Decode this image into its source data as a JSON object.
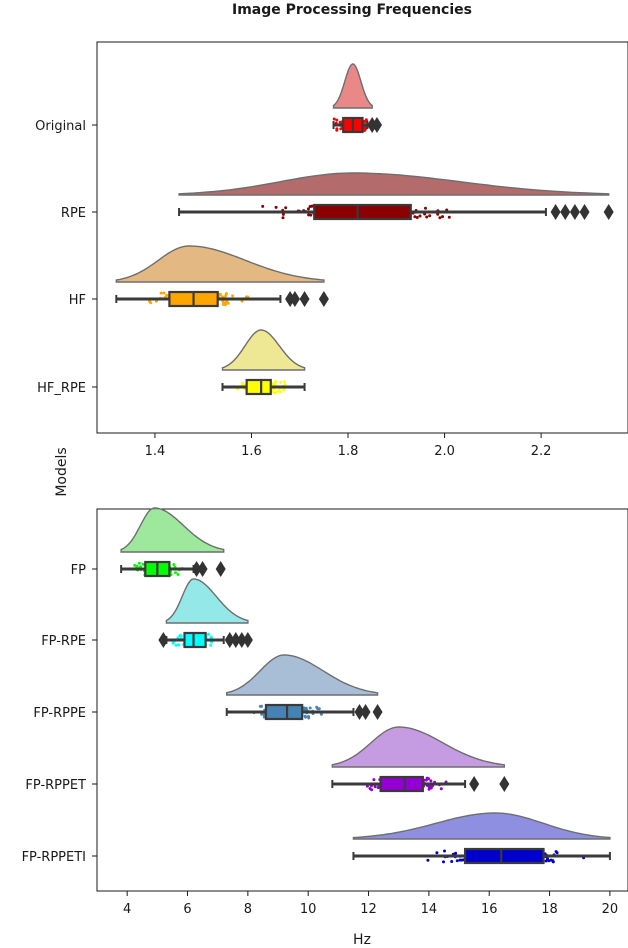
{
  "title": "Image Processing Frequencies",
  "ylabel": "Models",
  "xlabel": "Hz",
  "chart_data": [
    {
      "type": "raincloud",
      "xlim": [
        1.28,
        2.38
      ],
      "xticks": [
        "1.4",
        "1.6",
        "1.8",
        "2.0",
        "2.2"
      ],
      "categories": [
        "Original",
        "RPE",
        "HF",
        "HF_RPE"
      ],
      "series": [
        {
          "name": "Original",
          "color": "#e06060",
          "point_color": "#ff0000",
          "min": 1.77,
          "q1": 1.79,
          "median": 1.81,
          "q3": 1.83,
          "max": 1.84,
          "violin_min": 1.77,
          "violin_max": 1.85,
          "peak": 1.81,
          "outliers": [
            1.85,
            1.86
          ]
        },
        {
          "name": "RPE",
          "color": "#9b3a3a",
          "point_color": "#8b0000",
          "min": 1.45,
          "q1": 1.73,
          "median": 1.82,
          "q3": 1.93,
          "max": 2.21,
          "violin_min": 1.45,
          "violin_max": 2.34,
          "peak": 1.81,
          "outliers": [
            2.23,
            2.25,
            2.27,
            2.29,
            2.34
          ]
        },
        {
          "name": "HF",
          "color": "#d9a05a",
          "point_color": "#ffa500",
          "min": 1.32,
          "q1": 1.43,
          "median": 1.48,
          "q3": 1.53,
          "max": 1.66,
          "violin_min": 1.32,
          "violin_max": 1.75,
          "peak": 1.47,
          "outliers": [
            1.68,
            1.69,
            1.71,
            1.75
          ]
        },
        {
          "name": "HF_RPE",
          "color": "#e8e070",
          "point_color": "#ffff00",
          "min": 1.54,
          "q1": 1.59,
          "median": 1.62,
          "q3": 1.64,
          "max": 1.71,
          "violin_min": 1.54,
          "violin_max": 1.71,
          "peak": 1.62,
          "outliers": []
        }
      ]
    },
    {
      "type": "raincloud",
      "xlim": [
        3.0,
        20.6
      ],
      "xticks": [
        "4",
        "6",
        "8",
        "10",
        "12",
        "14",
        "16",
        "18",
        "20"
      ],
      "categories": [
        "FP",
        "FP-RPE",
        "FP-RPPE",
        "FP-RPPET",
        "FP-RPPETI"
      ],
      "series": [
        {
          "name": "FP",
          "color": "#7ee07e",
          "point_color": "#00ff00",
          "min": 3.8,
          "q1": 4.6,
          "median": 5.0,
          "q3": 5.4,
          "max": 6.2,
          "violin_min": 3.8,
          "violin_max": 7.2,
          "peak": 4.9,
          "outliers": [
            6.3,
            6.5,
            7.1
          ]
        },
        {
          "name": "FP-RPE",
          "color": "#70e0e0",
          "point_color": "#00ffff",
          "min": 5.3,
          "q1": 5.9,
          "median": 6.2,
          "q3": 6.6,
          "max": 7.2,
          "violin_min": 5.3,
          "violin_max": 8.0,
          "peak": 6.2,
          "outliers": [
            5.2,
            7.4,
            7.6,
            7.8,
            8.0
          ]
        },
        {
          "name": "FP-RPPE",
          "color": "#8aa8c8",
          "point_color": "#4682b4",
          "min": 7.3,
          "q1": 8.6,
          "median": 9.3,
          "q3": 9.8,
          "max": 11.5,
          "violin_min": 7.3,
          "violin_max": 12.3,
          "peak": 9.2,
          "outliers": [
            11.7,
            11.9,
            12.3
          ]
        },
        {
          "name": "FP-RPPET",
          "color": "#b27ad8",
          "point_color": "#9400d3",
          "min": 10.8,
          "q1": 12.4,
          "median": 13.2,
          "q3": 13.8,
          "max": 15.2,
          "violin_min": 10.8,
          "violin_max": 16.5,
          "peak": 13.0,
          "outliers": [
            15.5,
            16.5
          ]
        },
        {
          "name": "FP-RPPETI",
          "color": "#6a6ad8",
          "point_color": "#0000cd",
          "min": 11.5,
          "q1": 15.2,
          "median": 16.4,
          "q3": 17.8,
          "max": 20.0,
          "violin_min": 11.5,
          "violin_max": 20.0,
          "peak": 16.2,
          "outliers": []
        }
      ]
    }
  ]
}
